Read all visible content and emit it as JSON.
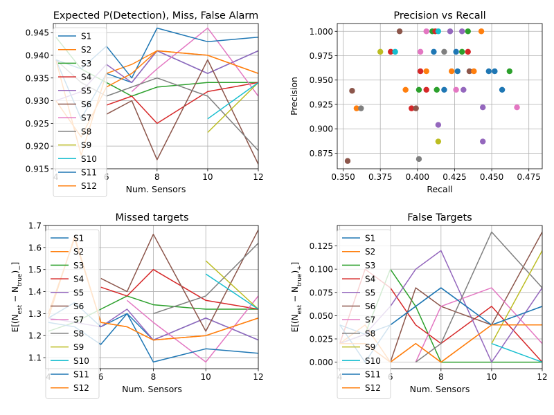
{
  "chart_data": [
    {
      "type": "line",
      "title": "Expected P(Detection), Miss, False Alarm",
      "xlabel": "Num. Sensors",
      "ylabel": "",
      "xlim": [
        3.9,
        12.0
      ],
      "ylim": [
        0.915,
        0.947
      ],
      "xticks": [
        4,
        6,
        8,
        10,
        12
      ],
      "xtick_labels": [
        "4",
        "6",
        "8",
        "10",
        "12"
      ],
      "yticks": [
        0.915,
        0.92,
        0.925,
        0.93,
        0.935,
        0.94,
        0.945
      ],
      "ytick_labels": [
        "0.915",
        "0.920",
        "0.925",
        "0.930",
        "0.935",
        "0.940",
        "0.945"
      ],
      "grid": true,
      "legend": "upper-left",
      "series": [
        {
          "name": "S1",
          "x": [
            4,
            5,
            6,
            7,
            8,
            10,
            12
          ],
          "y": [
            0.939,
            0.926,
            0.936,
            0.934,
            0.941,
            0.936,
            0.941
          ]
        },
        {
          "name": "S2",
          "x": [
            4,
            5,
            6,
            7,
            8,
            10,
            12
          ],
          "y": [
            0.939,
            0.918,
            0.936,
            0.938,
            0.941,
            0.94,
            0.936
          ]
        },
        {
          "name": "S3",
          "x": [
            4,
            5,
            6,
            7,
            8,
            10,
            12
          ],
          "y": [
            0.944,
            0.937,
            0.934,
            0.931,
            0.933,
            0.934,
            0.934
          ]
        },
        {
          "name": "S4",
          "x": [
            6,
            7,
            8,
            10,
            12
          ],
          "y": [
            0.929,
            0.931,
            0.925,
            0.932,
            0.934
          ]
        },
        {
          "name": "S5",
          "x": [
            4,
            5,
            6,
            7,
            8,
            10,
            12
          ],
          "y": [
            0.93,
            0.932,
            0.938,
            0.934,
            0.941,
            0.936,
            0.941
          ]
        },
        {
          "name": "S6",
          "x": [
            6,
            7,
            8,
            10,
            12
          ],
          "y": [
            0.927,
            0.93,
            0.917,
            0.939,
            0.916
          ]
        },
        {
          "name": "S7",
          "x": [
            7,
            8,
            10,
            12
          ],
          "y": [
            0.932,
            0.937,
            0.946,
            0.931
          ]
        },
        {
          "name": "S8",
          "x": [
            4,
            5,
            6,
            8,
            10,
            12
          ],
          "y": [
            0.939,
            0.934,
            0.931,
            0.935,
            0.931,
            0.919
          ]
        },
        {
          "name": "S9",
          "x": [
            10,
            12
          ],
          "y": [
            0.923,
            0.934
          ]
        },
        {
          "name": "S10",
          "x": [
            10,
            12
          ],
          "y": [
            0.926,
            0.934
          ]
        },
        {
          "name": "S11",
          "x": [
            4,
            5,
            6,
            7,
            8,
            10,
            12
          ],
          "y": [
            0.939,
            0.937,
            0.942,
            0.935,
            0.946,
            0.943,
            0.944
          ]
        },
        {
          "name": "S12",
          "x": [
            4,
            5,
            6,
            7,
            8,
            10,
            12
          ],
          "y": [
            0.93,
            0.922,
            0.933,
            0.936,
            0.941,
            0.94,
            0.936
          ]
        }
      ]
    },
    {
      "type": "scatter",
      "title": "Precision vs Recall",
      "xlabel": "Recall",
      "ylabel": "Precision",
      "xlim": [
        0.346,
        0.484
      ],
      "ylim": [
        0.859,
        1.008
      ],
      "xticks": [
        0.35,
        0.375,
        0.4,
        0.425,
        0.45,
        0.475
      ],
      "xtick_labels": [
        "0.350",
        "0.375",
        "0.400",
        "0.425",
        "0.450",
        "0.475"
      ],
      "yticks": [
        0.875,
        0.9,
        0.925,
        0.95,
        0.975,
        1.0
      ],
      "ytick_labels": [
        "0.875",
        "0.900",
        "0.925",
        "0.950",
        "0.975",
        "1.000"
      ],
      "grid": true,
      "points": [
        {
          "x": 0.353,
          "y": 0.867,
          "c": "#8c564b"
        },
        {
          "x": 0.356,
          "y": 0.939,
          "c": "#8c564b"
        },
        {
          "x": 0.359,
          "y": 0.921,
          "c": "#ff7f0e"
        },
        {
          "x": 0.362,
          "y": 0.921,
          "c": "#7f7f7f"
        },
        {
          "x": 0.375,
          "y": 0.979,
          "c": "#bcbd22"
        },
        {
          "x": 0.382,
          "y": 0.979,
          "c": "#d62728"
        },
        {
          "x": 0.385,
          "y": 0.979,
          "c": "#17becf"
        },
        {
          "x": 0.388,
          "y": 1.0,
          "c": "#8c564b"
        },
        {
          "x": 0.392,
          "y": 0.94,
          "c": "#ff7f0e"
        },
        {
          "x": 0.396,
          "y": 0.921,
          "c": "#d62728"
        },
        {
          "x": 0.399,
          "y": 0.921,
          "c": "#8c564b"
        },
        {
          "x": 0.401,
          "y": 0.869,
          "c": "#7f7f7f"
        },
        {
          "x": 0.401,
          "y": 0.94,
          "c": "#2ca02c"
        },
        {
          "x": 0.402,
          "y": 0.959,
          "c": "#d62728"
        },
        {
          "x": 0.402,
          "y": 0.979,
          "c": "#e377c2"
        },
        {
          "x": 0.406,
          "y": 0.959,
          "c": "#ff7f0e"
        },
        {
          "x": 0.406,
          "y": 0.94,
          "c": "#d62728"
        },
        {
          "x": 0.406,
          "y": 1.0,
          "c": "#e377c2"
        },
        {
          "x": 0.41,
          "y": 1.0,
          "c": "#2ca02c"
        },
        {
          "x": 0.411,
          "y": 0.979,
          "c": "#1f77b4"
        },
        {
          "x": 0.412,
          "y": 1.0,
          "c": "#d62728"
        },
        {
          "x": 0.413,
          "y": 0.94,
          "c": "#2ca02c"
        },
        {
          "x": 0.414,
          "y": 0.904,
          "c": "#9467bd"
        },
        {
          "x": 0.414,
          "y": 0.887,
          "c": "#bcbd22"
        },
        {
          "x": 0.414,
          "y": 1.0,
          "c": "#17becf"
        },
        {
          "x": 0.418,
          "y": 0.979,
          "c": "#7f7f7f"
        },
        {
          "x": 0.418,
          "y": 0.94,
          "c": "#1f77b4"
        },
        {
          "x": 0.422,
          "y": 1.0,
          "c": "#9467bd"
        },
        {
          "x": 0.423,
          "y": 0.959,
          "c": "#ff7f0e"
        },
        {
          "x": 0.426,
          "y": 0.979,
          "c": "#1f77b4"
        },
        {
          "x": 0.426,
          "y": 0.94,
          "c": "#e377c2"
        },
        {
          "x": 0.427,
          "y": 0.959,
          "c": "#1f77b4"
        },
        {
          "x": 0.43,
          "y": 0.979,
          "c": "#2ca02c"
        },
        {
          "x": 0.43,
          "y": 1.0,
          "c": "#9467bd"
        },
        {
          "x": 0.431,
          "y": 0.94,
          "c": "#9467bd"
        },
        {
          "x": 0.434,
          "y": 1.0,
          "c": "#2ca02c"
        },
        {
          "x": 0.434,
          "y": 0.979,
          "c": "#d62728"
        },
        {
          "x": 0.435,
          "y": 0.959,
          "c": "#8c564b"
        },
        {
          "x": 0.438,
          "y": 0.959,
          "c": "#ff7f0e"
        },
        {
          "x": 0.443,
          "y": 1.0,
          "c": "#ff7f0e"
        },
        {
          "x": 0.444,
          "y": 0.922,
          "c": "#9467bd"
        },
        {
          "x": 0.444,
          "y": 0.887,
          "c": "#9467bd"
        },
        {
          "x": 0.448,
          "y": 0.959,
          "c": "#1f77b4"
        },
        {
          "x": 0.452,
          "y": 0.959,
          "c": "#1f77b4"
        },
        {
          "x": 0.457,
          "y": 0.94,
          "c": "#1f77b4"
        },
        {
          "x": 0.462,
          "y": 0.959,
          "c": "#2ca02c"
        },
        {
          "x": 0.467,
          "y": 0.922,
          "c": "#e377c2"
        }
      ]
    },
    {
      "type": "line",
      "title": "Missed targets",
      "xlabel": "Num. Sensors",
      "ylabel": "E[(N_est − N_true)_−]",
      "xlim": [
        3.9,
        12.0
      ],
      "ylim": [
        1.05,
        1.7
      ],
      "xticks": [
        4,
        6,
        8,
        10,
        12
      ],
      "xtick_labels": [
        "4",
        "6",
        "8",
        "10",
        "12"
      ],
      "yticks": [
        1.1,
        1.2,
        1.3,
        1.4,
        1.5,
        1.6,
        1.7
      ],
      "ytick_labels": [
        "1.1",
        "1.2",
        "1.3",
        "1.4",
        "1.5",
        "1.6",
        "1.7"
      ],
      "grid": true,
      "legend": "upper-left",
      "series": [
        {
          "name": "S1",
          "x": [
            4,
            5,
            6,
            7,
            8,
            10,
            12
          ],
          "y": [
            1.28,
            1.35,
            1.24,
            1.3,
            1.18,
            1.28,
            1.18
          ]
        },
        {
          "name": "S2",
          "x": [
            4,
            5,
            6,
            7,
            8,
            10,
            12
          ],
          "y": [
            1.28,
            1.65,
            1.26,
            1.24,
            1.18,
            1.2,
            1.28
          ]
        },
        {
          "name": "S3",
          "x": [
            4,
            5,
            6,
            7,
            8,
            10,
            12
          ],
          "y": [
            1.22,
            1.26,
            1.32,
            1.38,
            1.34,
            1.32,
            1.32
          ]
        },
        {
          "name": "S4",
          "x": [
            6,
            7,
            8,
            10,
            12
          ],
          "y": [
            1.42,
            1.38,
            1.5,
            1.36,
            1.32
          ]
        },
        {
          "name": "S5",
          "x": [
            4,
            5,
            6,
            7,
            8,
            10,
            12
          ],
          "y": [
            1.28,
            1.26,
            1.24,
            1.32,
            1.18,
            1.28,
            1.18
          ]
        },
        {
          "name": "S6",
          "x": [
            6,
            7,
            8,
            10,
            12
          ],
          "y": [
            1.46,
            1.4,
            1.66,
            1.22,
            1.68
          ]
        },
        {
          "name": "S7",
          "x": [
            7,
            8,
            10,
            12
          ],
          "y": [
            1.36,
            1.26,
            1.08,
            1.38
          ]
        },
        {
          "name": "S8",
          "x": [
            8,
            10,
            12
          ],
          "y": [
            1.3,
            1.38,
            1.62
          ]
        },
        {
          "name": "S9",
          "x": [
            10,
            12
          ],
          "y": [
            1.54,
            1.32
          ]
        },
        {
          "name": "S10",
          "x": [
            10,
            12
          ],
          "y": [
            1.48,
            1.32
          ]
        },
        {
          "name": "S11",
          "x": [
            4,
            5,
            6,
            7,
            8,
            10,
            12
          ],
          "y": [
            1.26,
            1.24,
            1.16,
            1.3,
            1.08,
            1.14,
            1.12
          ]
        },
        {
          "name": "S12",
          "x": [
            4,
            5,
            6,
            7,
            8,
            10,
            12
          ],
          "y": [
            1.3,
            1.64,
            1.26,
            1.24,
            1.18,
            1.2,
            1.28
          ]
        }
      ]
    },
    {
      "type": "line",
      "title": "False Targets",
      "xlabel": "Num. Sensors",
      "ylabel": "E[(N_est − N_true)_+]",
      "xlim": [
        3.9,
        12.0
      ],
      "ylim": [
        -0.007,
        0.147
      ],
      "xticks": [
        4,
        6,
        8,
        10,
        12
      ],
      "xtick_labels": [
        "4",
        "6",
        "8",
        "10",
        "12"
      ],
      "yticks": [
        0.0,
        0.025,
        0.05,
        0.075,
        0.1,
        0.125
      ],
      "ytick_labels": [
        "0.000",
        "0.025",
        "0.050",
        "0.075",
        "0.100",
        "0.125"
      ],
      "grid": true,
      "legend": "upper-left",
      "series": [
        {
          "name": "S1",
          "x": [
            4,
            5,
            6,
            7,
            8,
            10,
            12
          ],
          "y": [
            0.04,
            0.03,
            0.04,
            0.06,
            0.08,
            0.04,
            0.06
          ]
        },
        {
          "name": "S2",
          "x": [
            4,
            5,
            6,
            7,
            8,
            10,
            12
          ],
          "y": [
            0.02,
            0.04,
            0.0,
            0.02,
            0.0,
            0.04,
            0.04
          ]
        },
        {
          "name": "S3",
          "x": [
            4,
            5,
            6,
            7,
            8,
            10,
            12
          ],
          "y": [
            0.02,
            0.03,
            0.1,
            0.06,
            0.0,
            0.0,
            0.0
          ]
        },
        {
          "name": "S4",
          "x": [
            4,
            5,
            6,
            7,
            8,
            10,
            12
          ],
          "y": [
            0.02,
            0.1,
            0.08,
            0.04,
            0.02,
            0.06,
            0.0
          ]
        },
        {
          "name": "S5",
          "x": [
            4,
            5,
            6,
            7,
            8,
            10,
            12
          ],
          "y": [
            0.02,
            0.03,
            0.06,
            0.1,
            0.12,
            0.0,
            0.08
          ]
        },
        {
          "name": "S6",
          "x": [
            4,
            5,
            6,
            7,
            8,
            10,
            12
          ],
          "y": [
            0.02,
            0.02,
            0.0,
            0.08,
            0.06,
            0.04,
            0.14
          ]
        },
        {
          "name": "S7",
          "x": [
            7,
            8,
            10,
            12
          ],
          "y": [
            0.0,
            0.06,
            0.08,
            0.02
          ]
        },
        {
          "name": "S8",
          "x": [
            7,
            8,
            10,
            12
          ],
          "y": [
            0.0,
            0.02,
            0.14,
            0.08
          ]
        },
        {
          "name": "S9",
          "x": [
            10,
            12
          ],
          "y": [
            0.02,
            0.12
          ]
        },
        {
          "name": "S10",
          "x": [
            10,
            12
          ],
          "y": [
            0.02,
            0.0
          ]
        },
        {
          "name": "S11",
          "x": [
            4,
            5,
            6,
            7,
            8,
            10,
            12
          ],
          "y": [
            0.04,
            0.0,
            0.04,
            0.06,
            0.08,
            0.04,
            0.06
          ]
        },
        {
          "name": "S12",
          "x": [
            4,
            5,
            6,
            7,
            8,
            10,
            12
          ],
          "y": [
            0.02,
            0.02,
            0.0,
            0.02,
            0.0,
            0.04,
            0.04
          ]
        }
      ]
    }
  ],
  "palette": [
    "#1f77b4",
    "#ff7f0e",
    "#2ca02c",
    "#d62728",
    "#9467bd",
    "#8c564b",
    "#e377c2",
    "#7f7f7f",
    "#bcbd22",
    "#17becf",
    "#1f77b4",
    "#ff7f0e"
  ]
}
